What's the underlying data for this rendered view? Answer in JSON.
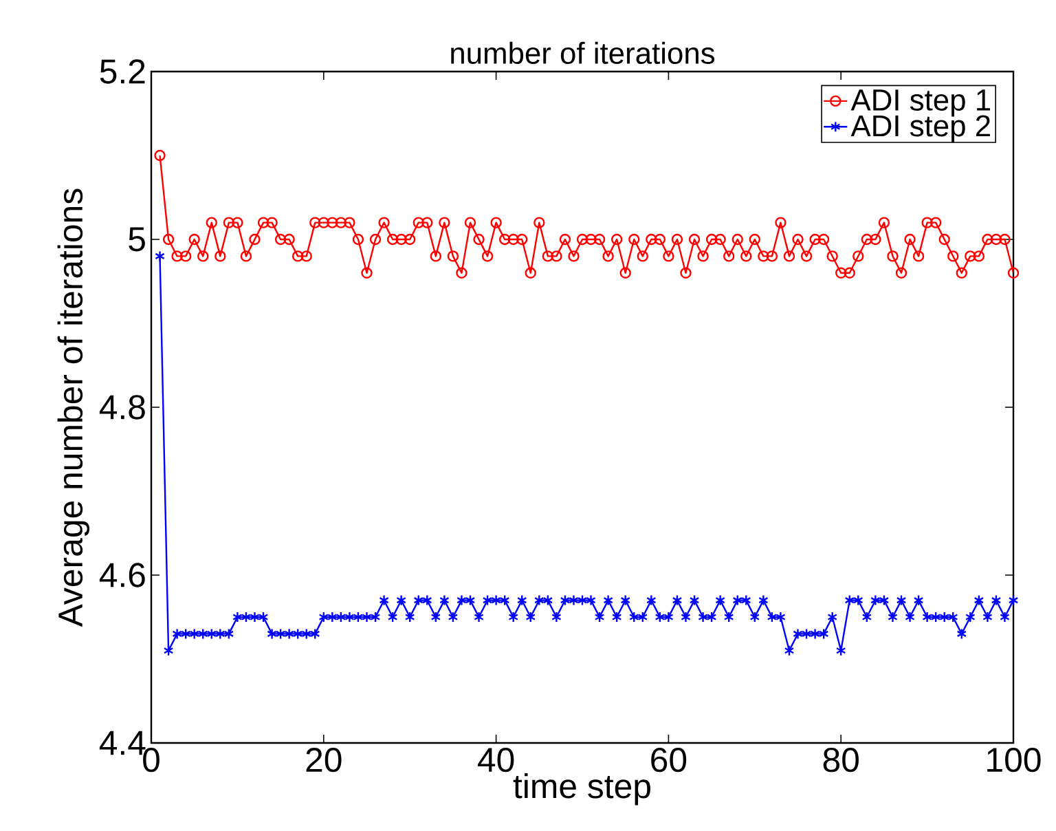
{
  "chart_data": {
    "type": "line",
    "title": "number of iterations",
    "xlabel": "time step",
    "ylabel": "Average number of iterations",
    "xlim": [
      0,
      100
    ],
    "xticks": [
      0,
      20,
      40,
      60,
      80,
      100
    ],
    "ylim": [
      4.4,
      5.2
    ],
    "yticks": [
      4.4,
      4.6,
      4.8,
      5,
      5.2
    ],
    "legend": "top right",
    "grid": false,
    "x": [
      1,
      2,
      3,
      4,
      5,
      6,
      7,
      8,
      9,
      10,
      11,
      12,
      13,
      14,
      15,
      16,
      17,
      18,
      19,
      20,
      21,
      22,
      23,
      24,
      25,
      26,
      27,
      28,
      29,
      30,
      31,
      32,
      33,
      34,
      35,
      36,
      37,
      38,
      39,
      40,
      41,
      42,
      43,
      44,
      45,
      46,
      47,
      48,
      49,
      50,
      51,
      52,
      53,
      54,
      55,
      56,
      57,
      58,
      59,
      60,
      61,
      62,
      63,
      64,
      65,
      66,
      67,
      68,
      69,
      70,
      71,
      72,
      73,
      74,
      75,
      76,
      77,
      78,
      79,
      80,
      81,
      82,
      83,
      84,
      85,
      86,
      87,
      88,
      89,
      90,
      91,
      92,
      93,
      94,
      95,
      96,
      97,
      98,
      99,
      100
    ],
    "series": [
      {
        "name": "ADI step 1",
        "color": "#ff0000",
        "marker": "circle",
        "values": [
          5.1,
          5.0,
          4.98,
          4.98,
          5.0,
          4.98,
          5.02,
          4.98,
          5.02,
          5.02,
          4.98,
          5.0,
          5.02,
          5.02,
          5.0,
          5.0,
          4.98,
          4.98,
          5.02,
          5.02,
          5.02,
          5.02,
          5.02,
          5.0,
          4.96,
          5.0,
          5.02,
          5.0,
          5.0,
          5.0,
          5.02,
          5.02,
          4.98,
          5.02,
          4.98,
          4.96,
          5.02,
          5.0,
          4.98,
          5.02,
          5.0,
          5.0,
          5.0,
          4.96,
          5.02,
          4.98,
          4.98,
          5.0,
          4.98,
          5.0,
          5.0,
          5.0,
          4.98,
          5.0,
          4.96,
          5.0,
          4.98,
          5.0,
          5.0,
          4.98,
          5.0,
          4.96,
          5.0,
          4.98,
          5.0,
          5.0,
          4.98,
          5.0,
          4.98,
          5.0,
          4.98,
          4.98,
          5.02,
          4.98,
          5.0,
          4.98,
          5.0,
          5.0,
          4.98,
          4.96,
          4.96,
          4.98,
          5.0,
          5.0,
          5.02,
          4.98,
          4.96,
          5.0,
          4.98,
          5.02,
          5.02,
          5.0,
          4.98,
          4.96,
          4.98,
          4.98,
          5.0,
          5.0,
          5.0,
          4.96
        ]
      },
      {
        "name": "ADI step 2",
        "color": "#0000ff",
        "marker": "cross",
        "values": [
          4.98,
          4.51,
          4.53,
          4.53,
          4.53,
          4.53,
          4.53,
          4.53,
          4.53,
          4.55,
          4.55,
          4.55,
          4.55,
          4.53,
          4.53,
          4.53,
          4.53,
          4.53,
          4.53,
          4.55,
          4.55,
          4.55,
          4.55,
          4.55,
          4.55,
          4.55,
          4.57,
          4.55,
          4.57,
          4.55,
          4.57,
          4.57,
          4.55,
          4.57,
          4.55,
          4.57,
          4.57,
          4.55,
          4.57,
          4.57,
          4.57,
          4.55,
          4.57,
          4.55,
          4.57,
          4.57,
          4.55,
          4.57,
          4.57,
          4.57,
          4.57,
          4.55,
          4.57,
          4.55,
          4.57,
          4.55,
          4.55,
          4.57,
          4.55,
          4.55,
          4.57,
          4.55,
          4.57,
          4.55,
          4.55,
          4.57,
          4.55,
          4.57,
          4.57,
          4.55,
          4.57,
          4.55,
          4.55,
          4.51,
          4.53,
          4.53,
          4.53,
          4.53,
          4.55,
          4.51,
          4.57,
          4.57,
          4.55,
          4.57,
          4.57,
          4.55,
          4.57,
          4.55,
          4.57,
          4.55,
          4.55,
          4.55,
          4.55,
          4.53,
          4.55,
          4.57,
          4.55,
          4.57,
          4.55,
          4.57
        ]
      }
    ]
  }
}
